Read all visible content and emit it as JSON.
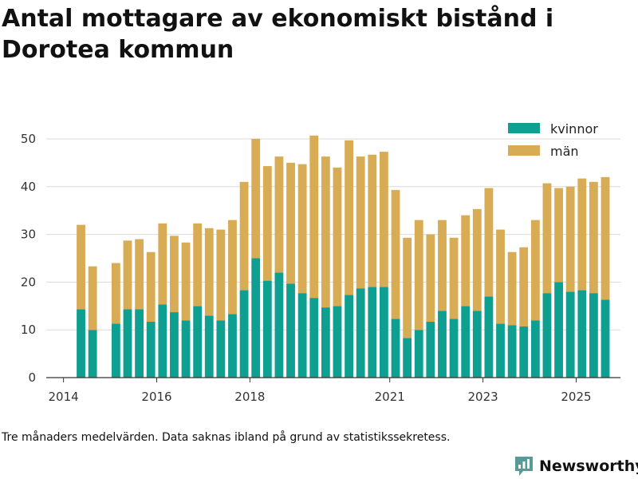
{
  "title": "Antal mottagare av ekonomiskt bistånd i Dorotea kommun",
  "note": "Tre månaders medelvärden. Data saknas ibland på grund av statistikssekretess.",
  "brand": "Newsworthy",
  "colors": {
    "kvinnor": "#0e9f91",
    "man": "#d8ab55",
    "brand": "#5a9a96",
    "grid": "#d9d9d9",
    "axis": "#333333"
  },
  "chart_data": {
    "type": "bar",
    "stacked": true,
    "title": "Antal mottagare av ekonomiskt bistånd i Dorotea kommun",
    "xlabel": "",
    "ylabel": "",
    "ylim": [
      0,
      52
    ],
    "yticks": [
      0,
      10,
      20,
      30,
      40,
      50
    ],
    "xlim": [
      2013.63,
      2025.95
    ],
    "xticks": [
      {
        "value": 2014,
        "label": "2014"
      },
      {
        "value": 2016,
        "label": "2016"
      },
      {
        "value": 2018,
        "label": "2018"
      },
      {
        "value": 2021,
        "label": "2021"
      },
      {
        "value": 2023,
        "label": "2023"
      },
      {
        "value": 2025,
        "label": "2025"
      }
    ],
    "legend_position": "top-right",
    "x": [
      2014.375,
      2014.625,
      2015.125,
      2015.375,
      2015.625,
      2015.875,
      2016.125,
      2016.375,
      2016.625,
      2016.875,
      2017.125,
      2017.375,
      2017.625,
      2017.875,
      2018.125,
      2018.375,
      2018.625,
      2018.875,
      2019.125,
      2019.375,
      2019.625,
      2019.875,
      2020.125,
      2020.375,
      2020.625,
      2020.875,
      2021.125,
      2021.375,
      2021.625,
      2021.875,
      2022.125,
      2022.375,
      2022.625,
      2022.875,
      2023.125,
      2023.375,
      2023.625,
      2023.875,
      2024.125,
      2024.375,
      2024.625,
      2024.875,
      2025.125,
      2025.375,
      2025.625
    ],
    "series": [
      {
        "name": "kvinnor",
        "key": "kvinnor",
        "values": [
          14.3,
          10,
          11.3,
          14.3,
          14.3,
          11.7,
          15.3,
          13.7,
          12,
          15,
          13,
          12,
          13.3,
          18.3,
          25,
          20.3,
          22,
          19.7,
          17.7,
          16.7,
          14.7,
          15,
          17.3,
          18.7,
          19,
          19,
          12.3,
          8.3,
          10,
          11.7,
          14,
          12.3,
          15,
          14,
          17,
          11.3,
          11,
          10.7,
          12,
          17.7,
          20,
          18,
          18.3,
          17.7,
          16.3
        ]
      },
      {
        "name": "män",
        "key": "man",
        "values": [
          17.7,
          13.3,
          12.7,
          14.4,
          14.7,
          14.6,
          17,
          16,
          16.3,
          17.3,
          18.3,
          19,
          19.7,
          22.7,
          25,
          24,
          24.3,
          25.3,
          27,
          34,
          31.6,
          29,
          32.4,
          27.6,
          27.7,
          28.3,
          27,
          21,
          23,
          18.3,
          19,
          17,
          19,
          21.3,
          22.7,
          19.7,
          15.3,
          16.6,
          21,
          23,
          19.7,
          22,
          23.4,
          23.3,
          25.7
        ]
      }
    ]
  }
}
